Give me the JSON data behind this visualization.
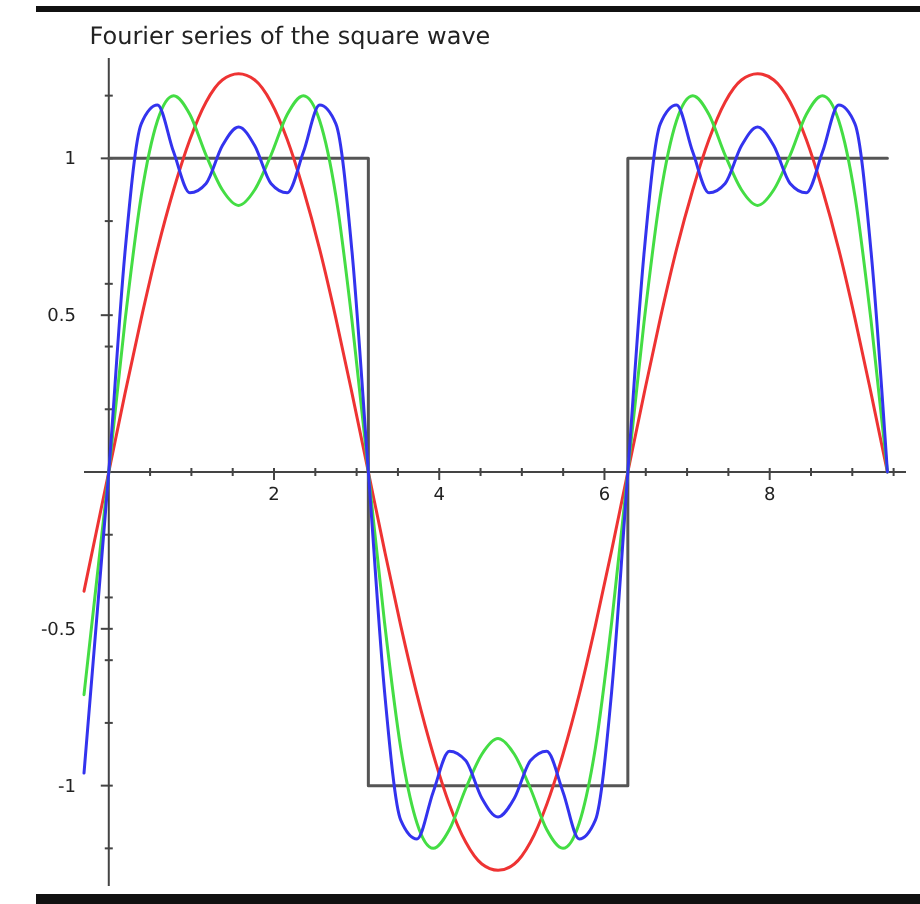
{
  "chart_data": {
    "type": "line",
    "title": "Fourier series of the square wave",
    "xlim": [
      -0.3,
      9.65
    ],
    "ylim": [
      -1.32,
      1.32
    ],
    "xticks": [
      {
        "value": 0.5,
        "label": null
      },
      {
        "value": 1,
        "label": null
      },
      {
        "value": 1.5,
        "label": null
      },
      2,
      {
        "value": 2.5,
        "label": null
      },
      {
        "value": 3,
        "label": null
      },
      {
        "value": 3.5,
        "label": null
      },
      4,
      {
        "value": 4.5,
        "label": null
      },
      {
        "value": 5,
        "label": null
      },
      {
        "value": 5.5,
        "label": null
      },
      6,
      {
        "value": 6.5,
        "label": null
      },
      {
        "value": 7,
        "label": null
      },
      {
        "value": 7.5,
        "label": null
      },
      8,
      {
        "value": 8.5,
        "label": null
      },
      {
        "value": 9,
        "label": null
      },
      {
        "value": 9.5,
        "label": null
      }
    ],
    "yticks": [
      {
        "value": -1.2,
        "label": null
      },
      {
        "value": -1,
        "label": "-1"
      },
      {
        "value": -0.8,
        "label": null
      },
      {
        "value": -0.6,
        "label": null
      },
      {
        "value": -0.5,
        "label": "-0.5"
      },
      {
        "value": -0.4,
        "label": null
      },
      {
        "value": -0.2,
        "label": null
      },
      {
        "value": 0.2,
        "label": null
      },
      {
        "value": 0.4,
        "label": null
      },
      {
        "value": 0.5,
        "label": "0.5"
      },
      {
        "value": 0.6,
        "label": null
      },
      {
        "value": 0.8,
        "label": null
      },
      {
        "value": 1,
        "label": "1"
      },
      {
        "value": 1.2,
        "label": null
      }
    ],
    "series": [
      {
        "color": "#555555",
        "x": [
          0,
          3.142,
          3.142,
          6.283,
          6.283,
          9.425
        ],
        "values": [
          1,
          1,
          -1,
          -1,
          1,
          1
        ]
      },
      {
        "color": "#ee3333",
        "x": [
          -0.3,
          0,
          0.196,
          0.393,
          0.589,
          0.785,
          0.982,
          1.178,
          1.374,
          1.571,
          1.767,
          1.963,
          2.16,
          2.356,
          2.553,
          2.749,
          2.945,
          3.142,
          3.338,
          3.534,
          3.731,
          3.927,
          4.123,
          4.32,
          4.516,
          4.712,
          4.909,
          5.105,
          5.301,
          5.498,
          5.694,
          5.89,
          6.087,
          6.283,
          6.48,
          6.676,
          6.872,
          7.069,
          7.265,
          7.461,
          7.658,
          7.854,
          8.05,
          8.247,
          8.443,
          8.639,
          8.836,
          9.032,
          9.228,
          9.425
        ],
        "values": [
          -0.38,
          0,
          0.25,
          0.49,
          0.71,
          0.9,
          1.06,
          1.18,
          1.25,
          1.27,
          1.25,
          1.18,
          1.06,
          0.9,
          0.71,
          0.49,
          0.25,
          0,
          -0.25,
          -0.49,
          -0.71,
          -0.9,
          -1.06,
          -1.18,
          -1.25,
          -1.27,
          -1.25,
          -1.18,
          -1.06,
          -0.9,
          -0.71,
          -0.49,
          -0.25,
          0,
          0.25,
          0.49,
          0.71,
          0.9,
          1.06,
          1.18,
          1.25,
          1.27,
          1.25,
          1.18,
          1.06,
          0.9,
          0.71,
          0.49,
          0.25,
          0
        ]
      },
      {
        "color": "#44dd44",
        "x": [
          -0.3,
          0,
          0.196,
          0.393,
          0.589,
          0.785,
          0.982,
          1.178,
          1.374,
          1.571,
          1.767,
          1.963,
          2.16,
          2.356,
          2.553,
          2.749,
          2.945,
          3.142,
          3.338,
          3.534,
          3.731,
          3.927,
          4.123,
          4.32,
          4.516,
          4.712,
          4.909,
          5.105,
          5.301,
          5.498,
          5.694,
          5.89,
          6.087,
          6.283,
          6.48,
          6.676,
          6.872,
          7.069,
          7.265,
          7.461,
          7.658,
          7.854,
          8.05,
          8.247,
          8.443,
          8.639,
          8.836,
          9.032,
          9.228,
          9.425
        ],
        "values": [
          -0.71,
          0,
          0.48,
          0.88,
          1.12,
          1.2,
          1.14,
          1.01,
          0.9,
          0.85,
          0.9,
          1.01,
          1.14,
          1.2,
          1.12,
          0.88,
          0.48,
          0,
          -0.48,
          -0.88,
          -1.12,
          -1.2,
          -1.14,
          -1.01,
          -0.9,
          -0.85,
          -0.9,
          -1.01,
          -1.14,
          -1.2,
          -1.12,
          -0.88,
          -0.48,
          0,
          0.48,
          0.88,
          1.12,
          1.2,
          1.14,
          1.01,
          0.9,
          0.85,
          0.9,
          1.01,
          1.14,
          1.2,
          1.12,
          0.88,
          0.48,
          0
        ]
      },
      {
        "color": "#3333ee",
        "x": [
          -0.3,
          0,
          0.196,
          0.393,
          0.589,
          0.785,
          0.982,
          1.178,
          1.374,
          1.571,
          1.767,
          1.963,
          2.16,
          2.356,
          2.553,
          2.749,
          2.945,
          3.142,
          3.338,
          3.534,
          3.731,
          3.927,
          4.123,
          4.32,
          4.516,
          4.712,
          4.909,
          5.105,
          5.301,
          5.498,
          5.694,
          5.89,
          6.087,
          6.283,
          6.48,
          6.676,
          6.872,
          7.069,
          7.265,
          7.461,
          7.658,
          7.854,
          8.05,
          8.247,
          8.443,
          8.639,
          8.836,
          9.032,
          9.228,
          9.425
        ],
        "values": [
          -0.96,
          0,
          0.7,
          1.11,
          1.17,
          1.02,
          0.89,
          0.92,
          1.04,
          1.1,
          1.04,
          0.92,
          0.89,
          1.02,
          1.17,
          1.11,
          0.7,
          0,
          -0.7,
          -1.11,
          -1.17,
          -1.02,
          -0.89,
          -0.92,
          -1.04,
          -1.1,
          -1.04,
          -0.92,
          -0.89,
          -1.02,
          -1.17,
          -1.11,
          -0.7,
          0,
          0.7,
          1.11,
          1.17,
          1.02,
          0.89,
          0.92,
          1.04,
          1.1,
          1.04,
          0.92,
          0.89,
          1.02,
          1.17,
          1.11,
          0.7,
          0
        ]
      }
    ]
  }
}
